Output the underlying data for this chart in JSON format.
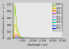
{
  "temperatures": [
    3000,
    2500,
    2000,
    1800,
    1600,
    1400,
    1200,
    1000,
    800
  ],
  "colors": [
    "#88cc00",
    "#ffcc00",
    "#ff8800",
    "#cc44cc",
    "#aaaaff",
    "#44cccc",
    "#00ccaa",
    "#4488ff",
    "#0000cc"
  ],
  "wavelength_min": 0,
  "wavelength_max": 25000,
  "ylabel": "Spectral luminance (W m⁻² sr⁻¹ m⁻¹)",
  "xlabel": "Wavelength λ (nm)",
  "legend_temps": [
    "3000 K",
    "2500 K",
    "2000 K",
    "1800 K",
    "1600 K",
    "1400 K",
    "1200 K",
    "1000 K",
    "800 K"
  ],
  "bg_color": "#e8e8e8",
  "fig_color": "#cccccc",
  "scale_factor": 10000000000000.0
}
